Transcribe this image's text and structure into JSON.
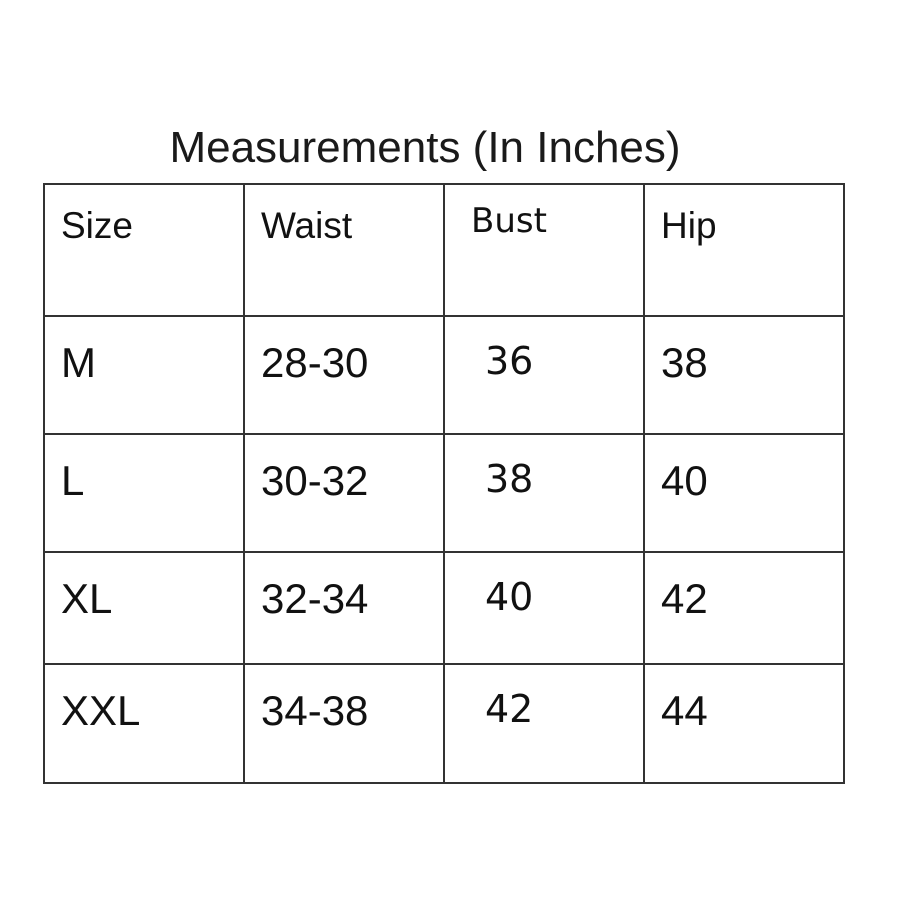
{
  "title": "Measurements (In Inches)",
  "table": {
    "headers": [
      "Size",
      "Waist",
      "Bust",
      "Hip"
    ],
    "rows": [
      [
        "M",
        "28-30",
        "36",
        "38"
      ],
      [
        "L",
        "30-32",
        "38",
        "40"
      ],
      [
        "XL",
        "32-34",
        "40",
        "42"
      ],
      [
        "XXL",
        "34-38",
        "42",
        "44"
      ]
    ]
  }
}
